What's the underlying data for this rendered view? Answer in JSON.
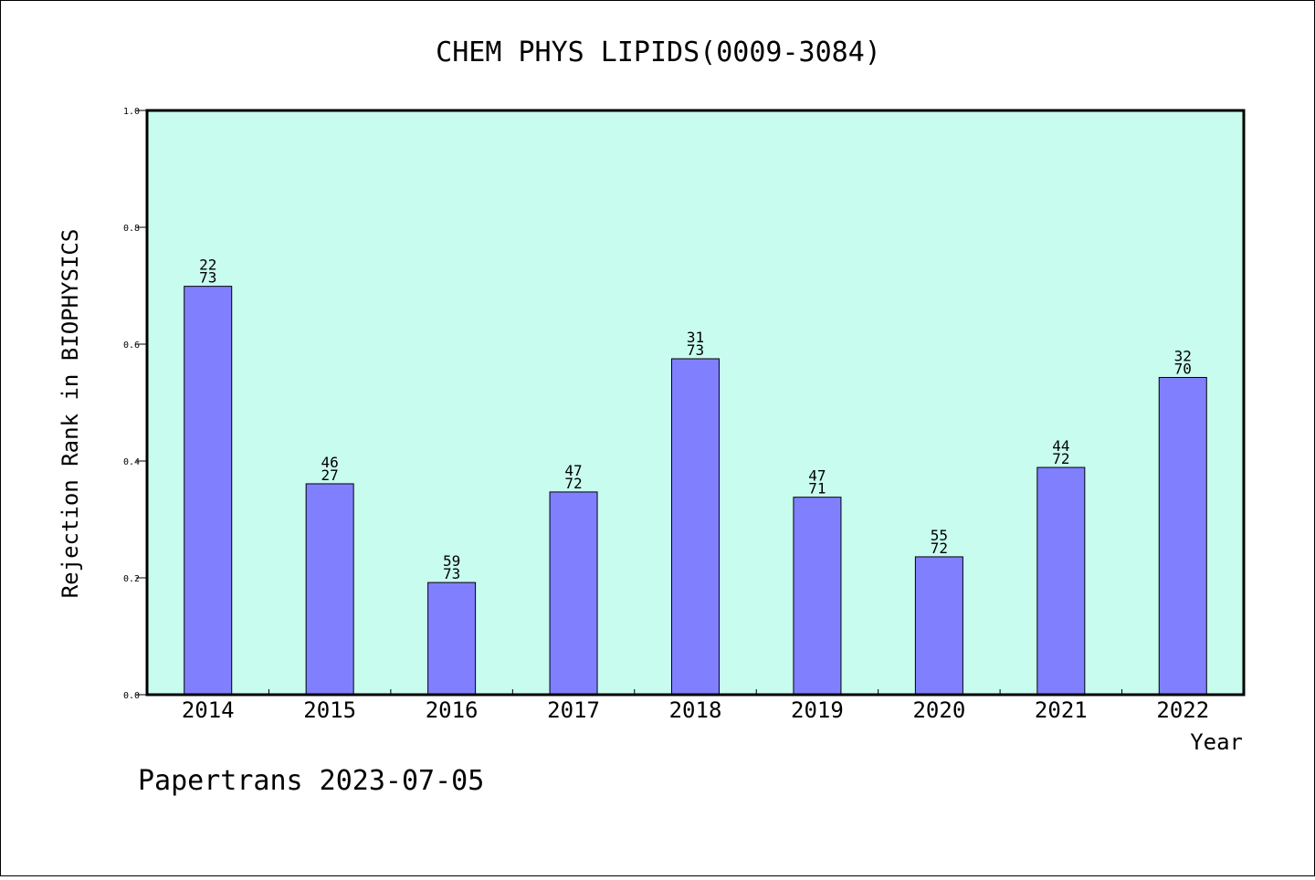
{
  "chart_data": {
    "type": "bar",
    "title": "CHEM PHYS LIPIDS(0009-3084)",
    "xlabel": "Year",
    "ylabel": "Rejection Rank in BIOPHYSICS",
    "ylim": [
      0.0,
      1.0
    ],
    "yticks": [
      "0.0",
      "0.2",
      "0.4",
      "0.6",
      "0.8",
      "1.0"
    ],
    "grid": false,
    "categories": [
      "2014",
      "2015",
      "2016",
      "2017",
      "2018",
      "2019",
      "2020",
      "2021",
      "2022"
    ],
    "values": [
      0.699,
      0.361,
      0.192,
      0.347,
      0.575,
      0.338,
      0.236,
      0.389,
      0.543
    ],
    "labels_top": [
      "22",
      "46",
      "59",
      "47",
      "31",
      "47",
      "55",
      "44",
      "32"
    ],
    "labels_bottom": [
      "73",
      "27",
      "73",
      "72",
      "73",
      "71",
      "72",
      "72",
      "70"
    ],
    "colors": {
      "plot_background": "#c8fcee",
      "bar_fill": "#8080ff",
      "bar_stroke": "#000000",
      "axis": "#000000"
    }
  },
  "footer": "Papertrans 2023-07-05"
}
